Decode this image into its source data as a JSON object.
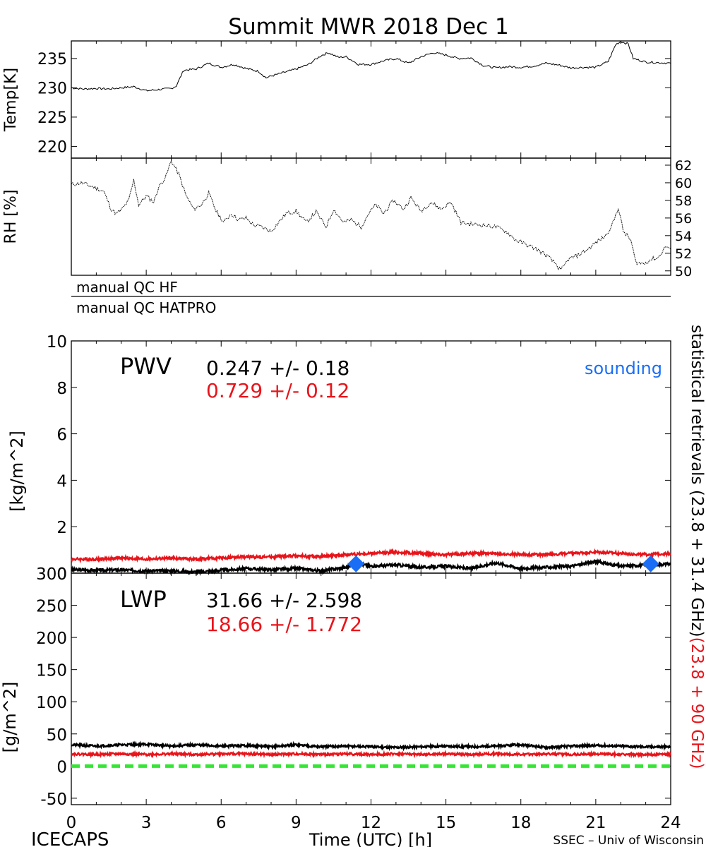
{
  "title": "Summit MWR 2018 Dec  1",
  "footer": {
    "left": "ICECAPS",
    "xlabel": "Time (UTC) [h]",
    "right": "SSEC – Univ of Wisconsin"
  },
  "colors": {
    "black": "#000000",
    "red": "#e8141a",
    "sounding": "#1a6ef5",
    "zero_line": "#33e633"
  },
  "qc": {
    "hf_label": "manual  QC  HF",
    "hatpro_label": "manual  QC  HATPRO"
  },
  "right_label": {
    "black_part": "statistical  retrievals  (23.8 + 31.4 GHz)",
    "red_part": "(23.8 + 90 GHz)"
  },
  "chart_data": [
    {
      "name": "temp",
      "type": "line",
      "ylabel": "Temp[K]",
      "xlim": [
        0,
        24
      ],
      "ylim": [
        218,
        238
      ],
      "yticks": [
        220,
        225,
        230,
        235
      ],
      "points": [
        [
          0,
          230.0
        ],
        [
          0.5,
          229.8
        ],
        [
          1,
          229.9
        ],
        [
          1.5,
          229.8
        ],
        [
          2,
          230.0
        ],
        [
          2.5,
          230.2
        ],
        [
          3,
          229.5
        ],
        [
          3.5,
          229.7
        ],
        [
          4,
          229.9
        ],
        [
          4.2,
          230.3
        ],
        [
          4.5,
          233.0
        ],
        [
          5,
          233.2
        ],
        [
          5.5,
          234.2
        ],
        [
          6,
          233.5
        ],
        [
          6.5,
          234.0
        ],
        [
          7,
          233.3
        ],
        [
          7.5,
          232.8
        ],
        [
          7.8,
          231.7
        ],
        [
          8,
          232.0
        ],
        [
          8.5,
          232.6
        ],
        [
          9,
          233.2
        ],
        [
          9.5,
          234.0
        ],
        [
          10,
          235.5
        ],
        [
          10.3,
          236.0
        ],
        [
          10.7,
          235.2
        ],
        [
          11,
          235.3
        ],
        [
          11.5,
          234.0
        ],
        [
          12,
          234.0
        ],
        [
          12.5,
          234.6
        ],
        [
          13,
          235.0
        ],
        [
          13.5,
          234.2
        ],
        [
          14,
          235.3
        ],
        [
          14.5,
          236.0
        ],
        [
          15,
          235.6
        ],
        [
          15.5,
          235.0
        ],
        [
          16,
          235.1
        ],
        [
          16.5,
          233.8
        ],
        [
          17,
          233.4
        ],
        [
          17.5,
          233.6
        ],
        [
          18,
          233.5
        ],
        [
          18.5,
          233.7
        ],
        [
          19,
          234.2
        ],
        [
          19.5,
          233.9
        ],
        [
          20,
          233.4
        ],
        [
          20.5,
          233.5
        ],
        [
          21,
          233.5
        ],
        [
          21.5,
          234.5
        ],
        [
          21.8,
          237.4
        ],
        [
          22,
          237.9
        ],
        [
          22.3,
          237.5
        ],
        [
          22.5,
          235.0
        ],
        [
          23,
          234.4
        ],
        [
          23.5,
          234.3
        ],
        [
          24,
          234.2
        ]
      ]
    },
    {
      "name": "rh",
      "type": "line",
      "ylabel": "RH [%]",
      "xlim": [
        0,
        24
      ],
      "ylim": [
        49.5,
        62.8
      ],
      "yticks": [
        50,
        52,
        54,
        56,
        58,
        60,
        62
      ],
      "points": [
        [
          0,
          59.8
        ],
        [
          0.4,
          60.0
        ],
        [
          0.9,
          59.5
        ],
        [
          1.3,
          59.0
        ],
        [
          1.6,
          57.0
        ],
        [
          1.8,
          56.5
        ],
        [
          2,
          56.9
        ],
        [
          2.3,
          58.0
        ],
        [
          2.5,
          60.3
        ],
        [
          2.7,
          57.5
        ],
        [
          3,
          58.5
        ],
        [
          3.3,
          57.8
        ],
        [
          3.5,
          59.5
        ],
        [
          3.8,
          60.8
        ],
        [
          4,
          62.5
        ],
        [
          4.3,
          61.0
        ],
        [
          4.6,
          58.5
        ],
        [
          4.9,
          57.0
        ],
        [
          5.2,
          57.5
        ],
        [
          5.5,
          58.8
        ],
        [
          5.8,
          56.8
        ],
        [
          6.1,
          55.5
        ],
        [
          6.4,
          56.5
        ],
        [
          6.7,
          55.8
        ],
        [
          7,
          56.0
        ],
        [
          7.3,
          55.2
        ],
        [
          7.6,
          55.0
        ],
        [
          8,
          54.5
        ],
        [
          8.3,
          55.5
        ],
        [
          8.6,
          56.5
        ],
        [
          9,
          56.8
        ],
        [
          9.4,
          55.5
        ],
        [
          9.8,
          56.7
        ],
        [
          10.2,
          55.0
        ],
        [
          10.5,
          57.0
        ],
        [
          10.9,
          55.5
        ],
        [
          11.2,
          55.8
        ],
        [
          11.6,
          55.0
        ],
        [
          11.9,
          56.5
        ],
        [
          12.2,
          57.5
        ],
        [
          12.5,
          56.5
        ],
        [
          12.9,
          58.0
        ],
        [
          13.3,
          57.0
        ],
        [
          13.6,
          58.3
        ],
        [
          14,
          56.8
        ],
        [
          14.4,
          57.8
        ],
        [
          14.8,
          57.0
        ],
        [
          15.2,
          57.8
        ],
        [
          15.6,
          55.5
        ],
        [
          16,
          55.3
        ],
        [
          16.5,
          55.2
        ],
        [
          17,
          55.0
        ],
        [
          17.4,
          54.5
        ],
        [
          17.8,
          53.5
        ],
        [
          18.2,
          53.0
        ],
        [
          18.6,
          52.5
        ],
        [
          19,
          51.8
        ],
        [
          19.4,
          50.8
        ],
        [
          19.6,
          50.0
        ],
        [
          19.9,
          51.3
        ],
        [
          20.3,
          51.8
        ],
        [
          20.7,
          52.5
        ],
        [
          21,
          53.2
        ],
        [
          21.4,
          54.0
        ],
        [
          21.7,
          55.5
        ],
        [
          21.9,
          57.2
        ],
        [
          22.1,
          54.5
        ],
        [
          22.4,
          53.5
        ],
        [
          22.6,
          51.0
        ],
        [
          22.9,
          50.8
        ],
        [
          23.2,
          51.3
        ],
        [
          23.5,
          51.5
        ],
        [
          23.8,
          52.8
        ],
        [
          24,
          52.5
        ]
      ]
    },
    {
      "name": "pwv",
      "type": "line",
      "label": "PWV",
      "ylabel": "[kg/m^2]",
      "xlim": [
        0,
        24
      ],
      "ylim": [
        0,
        10
      ],
      "yticks": [
        0,
        2,
        4,
        6,
        8,
        10
      ],
      "series": [
        {
          "color": "black",
          "stat": "0.247  +/-   0.18",
          "points": [
            [
              0,
              0.15
            ],
            [
              1,
              0.12
            ],
            [
              2,
              0.14
            ],
            [
              3,
              0.1
            ],
            [
              4,
              0.1
            ],
            [
              5,
              0.05
            ],
            [
              6,
              0.12
            ],
            [
              7,
              0.2
            ],
            [
              8,
              0.15
            ],
            [
              9,
              0.2
            ],
            [
              10,
              0.1
            ],
            [
              11,
              0.25
            ],
            [
              11.5,
              0.4
            ],
            [
              12,
              0.3
            ],
            [
              13,
              0.35
            ],
            [
              14,
              0.25
            ],
            [
              15,
              0.3
            ],
            [
              16,
              0.2
            ],
            [
              17,
              0.45
            ],
            [
              18,
              0.2
            ],
            [
              19,
              0.25
            ],
            [
              20,
              0.3
            ],
            [
              21,
              0.5
            ],
            [
              22,
              0.3
            ],
            [
              23,
              0.35
            ],
            [
              24,
              0.4
            ]
          ]
        },
        {
          "color": "red",
          "stat": "0.729  +/-   0.12",
          "points": [
            [
              0,
              0.6
            ],
            [
              1,
              0.6
            ],
            [
              2,
              0.65
            ],
            [
              3,
              0.6
            ],
            [
              4,
              0.65
            ],
            [
              5,
              0.6
            ],
            [
              6,
              0.65
            ],
            [
              7,
              0.7
            ],
            [
              8,
              0.7
            ],
            [
              9,
              0.75
            ],
            [
              10,
              0.7
            ],
            [
              11,
              0.8
            ],
            [
              12,
              0.85
            ],
            [
              13,
              0.9
            ],
            [
              14,
              0.85
            ],
            [
              15,
              0.8
            ],
            [
              16,
              0.85
            ],
            [
              17,
              0.85
            ],
            [
              18,
              0.8
            ],
            [
              19,
              0.8
            ],
            [
              20,
              0.85
            ],
            [
              21,
              0.9
            ],
            [
              22,
              0.85
            ],
            [
              23,
              0.8
            ],
            [
              24,
              0.85
            ]
          ]
        }
      ],
      "sounding": {
        "label": "sounding",
        "points": [
          [
            11.4,
            0.4
          ],
          [
            23.2,
            0.4
          ]
        ]
      }
    },
    {
      "name": "lwp",
      "type": "line",
      "label": "LWP",
      "ylabel": "[g/m^2]",
      "xlabel": "Time (UTC) [h]",
      "xlim": [
        0,
        24
      ],
      "ylim": [
        -60,
        300
      ],
      "yticks": [
        -50,
        0,
        50,
        100,
        150,
        200,
        250,
        300
      ],
      "xticks": [
        0,
        3,
        6,
        9,
        12,
        15,
        18,
        21,
        24
      ],
      "series": [
        {
          "color": "black",
          "stat": "31.66  +/-   2.598",
          "points": [
            [
              0,
              33
            ],
            [
              1,
              31
            ],
            [
              2,
              33
            ],
            [
              3,
              34
            ],
            [
              4,
              31
            ],
            [
              5,
              33
            ],
            [
              6,
              31
            ],
            [
              7,
              32
            ],
            [
              8,
              30
            ],
            [
              9,
              33
            ],
            [
              10,
              30
            ],
            [
              11,
              31
            ],
            [
              12,
              30
            ],
            [
              13,
              29
            ],
            [
              14,
              30
            ],
            [
              15,
              31
            ],
            [
              16,
              30
            ],
            [
              17,
              31
            ],
            [
              18,
              33
            ],
            [
              19,
              29
            ],
            [
              20,
              31
            ],
            [
              21,
              32
            ],
            [
              22,
              31
            ],
            [
              23,
              30
            ],
            [
              24,
              30
            ]
          ]
        },
        {
          "color": "red",
          "stat": "18.66  +/-   1.772",
          "points": [
            [
              0,
              19
            ],
            [
              1,
              18
            ],
            [
              2,
              19
            ],
            [
              3,
              18
            ],
            [
              4,
              19
            ],
            [
              5,
              18
            ],
            [
              6,
              19
            ],
            [
              7,
              19
            ],
            [
              8,
              18
            ],
            [
              9,
              19
            ],
            [
              10,
              18
            ],
            [
              11,
              19
            ],
            [
              12,
              18
            ],
            [
              13,
              19
            ],
            [
              14,
              18
            ],
            [
              15,
              19
            ],
            [
              16,
              18
            ],
            [
              17,
              19
            ],
            [
              18,
              18
            ],
            [
              19,
              19
            ],
            [
              20,
              18
            ],
            [
              21,
              19
            ],
            [
              22,
              18
            ],
            [
              23,
              18
            ],
            [
              24,
              18
            ]
          ]
        }
      ],
      "zero_line": 0
    }
  ]
}
